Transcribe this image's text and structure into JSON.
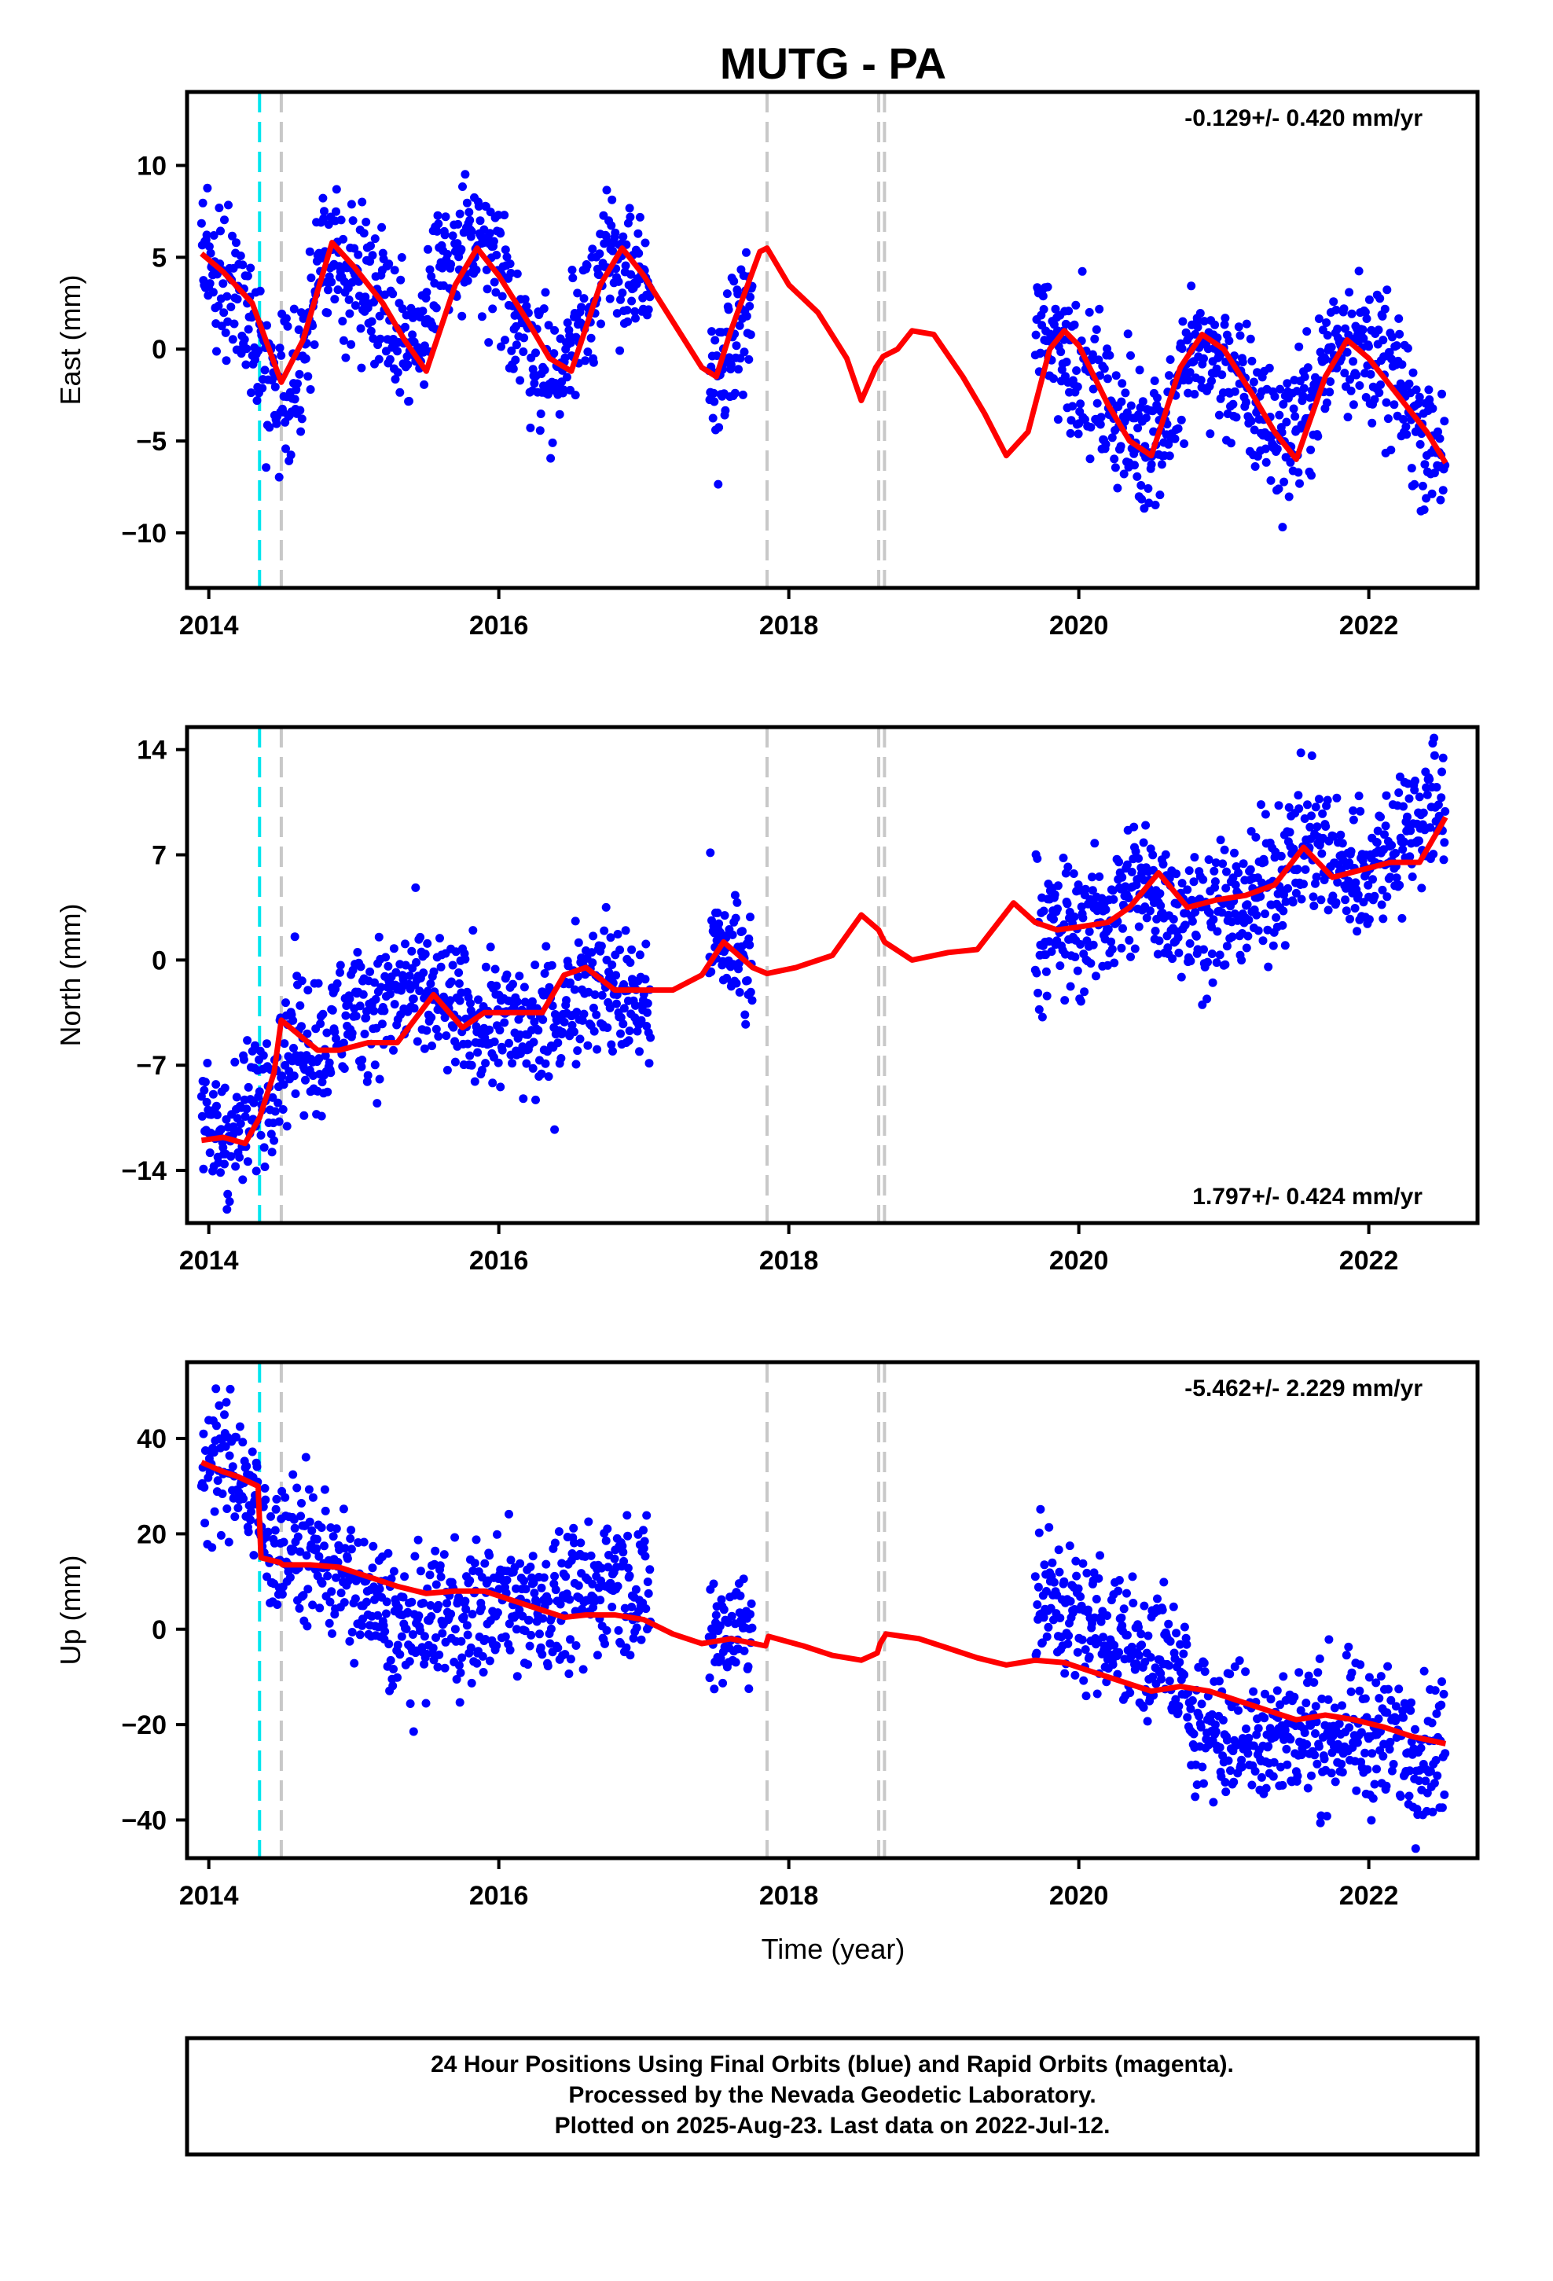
{
  "title": "MUTG - PA",
  "x_axis_label": "Time (year)",
  "footer": {
    "line1": "24 Hour Positions Using Final Orbits (blue) and Rapid Orbits (magenta).",
    "line2": "Processed by the Nevada Geodetic Laboratory.",
    "line3": "Plotted on 2025-Aug-23. Last data on 2022-Jul-12."
  },
  "colors": {
    "final_orbits": "#0000ff",
    "model": "#ff0000",
    "antenna_change": "#00e5ee",
    "equipment_change": "#c8c8c8"
  },
  "chart_data": [
    {
      "type": "scatter",
      "panel": "east",
      "ylabel": "East (mm)",
      "rate_text": "-0.129+/- 0.420 mm/yr",
      "rate_position": "top-right",
      "xlim": [
        2013.85,
        2022.75
      ],
      "ylim": [
        -13,
        14
      ],
      "xticks": [
        2014,
        2016,
        2018,
        2020,
        2022
      ],
      "yticks": [
        -10,
        -5,
        0,
        5,
        10
      ],
      "vlines_cyan": [
        2014.35
      ],
      "vlines_gray": [
        2014.5,
        2017.85,
        2018.62,
        2018.66
      ],
      "data_segments": [
        [
          2013.95,
          2017.05
        ],
        [
          2017.45,
          2017.75
        ],
        [
          2019.7,
          2022.53
        ]
      ],
      "series": [
        {
          "role": "observations",
          "style": "dots",
          "color": "#0000ff",
          "x": [
            2014.0,
            2014.2,
            2014.4,
            2014.6,
            2014.8,
            2015.0,
            2015.2,
            2015.4,
            2015.6,
            2015.8,
            2016.0,
            2016.2,
            2016.4,
            2016.6,
            2016.8,
            2017.0,
            2017.5,
            2017.7,
            2019.8,
            2020.0,
            2020.2,
            2020.4,
            2020.6,
            2020.8,
            2021.0,
            2021.2,
            2021.4,
            2021.6,
            2021.8,
            2022.0,
            2022.2,
            2022.4
          ],
          "y": [
            4.5,
            3.5,
            -1.5,
            -2,
            5,
            4,
            3,
            0,
            4,
            6,
            4,
            0.5,
            -2,
            3,
            5,
            3,
            -2,
            2,
            1,
            -1,
            -3,
            -5,
            -4,
            0,
            -1,
            -3,
            -5,
            -3,
            1,
            0,
            -2,
            -5
          ]
        },
        {
          "role": "model",
          "style": "line",
          "color": "#ff0000",
          "x": [
            2013.95,
            2014.1,
            2014.3,
            2014.5,
            2014.65,
            2014.85,
            2015.0,
            2015.2,
            2015.35,
            2015.5,
            2015.7,
            2015.85,
            2016.0,
            2016.2,
            2016.35,
            2016.5,
            2016.7,
            2016.85,
            2017.0,
            2017.2,
            2017.4,
            2017.5,
            2017.6,
            2017.8,
            2017.85,
            2018.0,
            2018.2,
            2018.4,
            2018.5,
            2018.6,
            2018.65,
            2018.75,
            2018.85,
            2019.0,
            2019.2,
            2019.35,
            2019.5,
            2019.65,
            2019.8,
            2019.9,
            2020.0,
            2020.2,
            2020.35,
            2020.5,
            2020.7,
            2020.85,
            2021.0,
            2021.2,
            2021.35,
            2021.5,
            2021.7,
            2021.85,
            2022.0,
            2022.2,
            2022.4,
            2022.53
          ],
          "y": [
            5.2,
            4.2,
            2.5,
            -1.8,
            0.5,
            5.8,
            4.5,
            2.5,
            0.5,
            -1.2,
            3.5,
            5.5,
            4.0,
            1.5,
            -0.5,
            -1.2,
            3.5,
            5.5,
            4.0,
            1.5,
            -1.0,
            -1.5,
            1.0,
            5.3,
            5.5,
            3.5,
            2.0,
            -0.5,
            -2.8,
            -1.0,
            -0.4,
            0,
            1.0,
            0.8,
            -1.5,
            -3.5,
            -5.8,
            -4.5,
            0,
            1.0,
            0.2,
            -3.0,
            -5.0,
            -5.8,
            -1.0,
            0.8,
            0,
            -2.5,
            -4.5,
            -6.0,
            -1.5,
            0.5,
            -0.5,
            -2.5,
            -4.5,
            -6.2
          ]
        }
      ]
    },
    {
      "type": "scatter",
      "panel": "north",
      "ylabel": "North (mm)",
      "rate_text": "1.797+/- 0.424 mm/yr",
      "rate_position": "bottom-right",
      "xlim": [
        2013.85,
        2022.75
      ],
      "ylim": [
        -17.5,
        15.5
      ],
      "xticks": [
        2014,
        2016,
        2018,
        2020,
        2022
      ],
      "yticks": [
        -14,
        -7,
        0,
        7,
        14
      ],
      "vlines_cyan": [
        2014.35
      ],
      "vlines_gray": [
        2014.5,
        2017.85,
        2018.62,
        2018.66
      ],
      "data_segments": [
        [
          2013.95,
          2017.05
        ],
        [
          2017.45,
          2017.75
        ],
        [
          2019.7,
          2022.53
        ]
      ],
      "series": [
        {
          "role": "observations",
          "style": "dots",
          "color": "#0000ff",
          "x": [
            2014.0,
            2014.2,
            2014.4,
            2014.6,
            2014.8,
            2015.0,
            2015.2,
            2015.4,
            2015.6,
            2015.8,
            2016.0,
            2016.2,
            2016.4,
            2016.6,
            2016.8,
            2017.0,
            2017.5,
            2017.7,
            2019.8,
            2020.0,
            2020.2,
            2020.4,
            2020.6,
            2020.8,
            2021.0,
            2021.2,
            2021.4,
            2021.6,
            2021.8,
            2022.0,
            2022.2,
            2022.4
          ],
          "y": [
            -11.5,
            -11.5,
            -8,
            -5,
            -6,
            -3,
            -3,
            -2,
            -3,
            -4,
            -4,
            -5,
            -4,
            -1,
            -2,
            -3,
            1,
            0,
            2,
            2,
            3,
            5,
            4,
            3,
            3,
            4,
            6,
            8,
            6,
            6,
            8,
            10
          ]
        },
        {
          "role": "model",
          "style": "line",
          "color": "#ff0000",
          "x": [
            2013.95,
            2014.1,
            2014.25,
            2014.35,
            2014.45,
            2014.5,
            2014.6,
            2014.75,
            2014.9,
            2015.1,
            2015.3,
            2015.55,
            2015.75,
            2015.9,
            2016.1,
            2016.3,
            2016.45,
            2016.6,
            2016.8,
            2017.0,
            2017.2,
            2017.4,
            2017.55,
            2017.75,
            2017.85,
            2018.05,
            2018.3,
            2018.5,
            2018.62,
            2018.66,
            2018.85,
            2019.1,
            2019.3,
            2019.55,
            2019.7,
            2019.85,
            2020.0,
            2020.2,
            2020.35,
            2020.55,
            2020.75,
            2020.95,
            2021.15,
            2021.35,
            2021.55,
            2021.75,
            2021.95,
            2022.15,
            2022.35,
            2022.53
          ],
          "y": [
            -12.0,
            -11.8,
            -12.2,
            -10.5,
            -7.5,
            -4.0,
            -4.8,
            -6.0,
            -6.0,
            -5.5,
            -5.5,
            -2.3,
            -4.5,
            -3.5,
            -3.5,
            -3.5,
            -1.0,
            -0.5,
            -2.0,
            -2.0,
            -2.0,
            -1.0,
            1.2,
            -0.5,
            -0.9,
            -0.5,
            0.3,
            3.0,
            2.0,
            1.2,
            0.0,
            0.5,
            0.7,
            3.8,
            2.5,
            2.0,
            2.2,
            2.5,
            3.5,
            5.8,
            3.5,
            4.0,
            4.3,
            5.0,
            7.5,
            5.5,
            6.0,
            6.5,
            6.5,
            9.5
          ]
        }
      ]
    },
    {
      "type": "scatter",
      "panel": "up",
      "ylabel": "Up (mm)",
      "rate_text": "-5.462+/- 2.229 mm/yr",
      "rate_position": "top-right",
      "xlim": [
        2013.85,
        2022.75
      ],
      "ylim": [
        -48,
        56
      ],
      "xticks": [
        2014,
        2016,
        2018,
        2020,
        2022
      ],
      "yticks": [
        -40,
        -20,
        0,
        20,
        40
      ],
      "vlines_cyan": [
        2014.35
      ],
      "vlines_gray": [
        2014.5,
        2017.85,
        2018.62,
        2018.66
      ],
      "data_segments": [
        [
          2013.95,
          2017.05
        ],
        [
          2017.45,
          2017.75
        ],
        [
          2019.7,
          2022.53
        ]
      ],
      "series": [
        {
          "role": "observations",
          "style": "dots",
          "color": "#0000ff",
          "x": [
            2014.0,
            2014.2,
            2014.4,
            2014.6,
            2014.8,
            2015.0,
            2015.2,
            2015.4,
            2015.6,
            2015.8,
            2016.0,
            2016.2,
            2016.4,
            2016.6,
            2016.8,
            2017.0,
            2017.5,
            2017.7,
            2019.8,
            2020.0,
            2020.2,
            2020.4,
            2020.6,
            2020.8,
            2021.0,
            2021.2,
            2021.4,
            2021.6,
            2021.8,
            2022.0,
            2022.2,
            2022.4
          ],
          "y": [
            34,
            35,
            18,
            17,
            15,
            8,
            3,
            -2,
            4,
            2,
            6,
            6,
            5,
            7,
            12,
            8,
            -2,
            2,
            6,
            2,
            0,
            -5,
            -5,
            -18,
            -22,
            -22,
            -22,
            -22,
            -22,
            -22,
            -23,
            -25
          ]
        },
        {
          "role": "model",
          "style": "line",
          "color": "#ff0000",
          "x": [
            2013.95,
            2014.1,
            2014.2,
            2014.34,
            2014.36,
            2014.49,
            2014.51,
            2014.7,
            2014.9,
            2015.1,
            2015.3,
            2015.5,
            2015.7,
            2015.9,
            2016.1,
            2016.3,
            2016.45,
            2016.6,
            2016.8,
            2017.0,
            2017.2,
            2017.4,
            2017.6,
            2017.84,
            2017.86,
            2018.1,
            2018.3,
            2018.5,
            2018.61,
            2018.63,
            2018.67,
            2018.9,
            2019.1,
            2019.3,
            2019.5,
            2019.7,
            2019.9,
            2020.1,
            2020.3,
            2020.5,
            2020.7,
            2020.9,
            2021.1,
            2021.3,
            2021.5,
            2021.7,
            2021.9,
            2022.1,
            2022.3,
            2022.53
          ],
          "y": [
            35,
            33,
            32,
            30,
            15,
            14,
            13.5,
            13.5,
            13,
            11,
            9,
            7.5,
            8.0,
            8.0,
            6.0,
            4.0,
            2.5,
            3.0,
            3.0,
            2.0,
            -1.0,
            -3.0,
            -2.0,
            -3.5,
            -1.5,
            -3.5,
            -5.5,
            -6.5,
            -5.0,
            -3.0,
            -1.0,
            -2.0,
            -4.0,
            -6.0,
            -7.5,
            -6.5,
            -7.0,
            -9.0,
            -11.0,
            -13.0,
            -12.0,
            -13.0,
            -15.0,
            -17.0,
            -19.0,
            -18.0,
            -19.0,
            -20.5,
            -22.5,
            -24.0
          ]
        }
      ]
    }
  ]
}
